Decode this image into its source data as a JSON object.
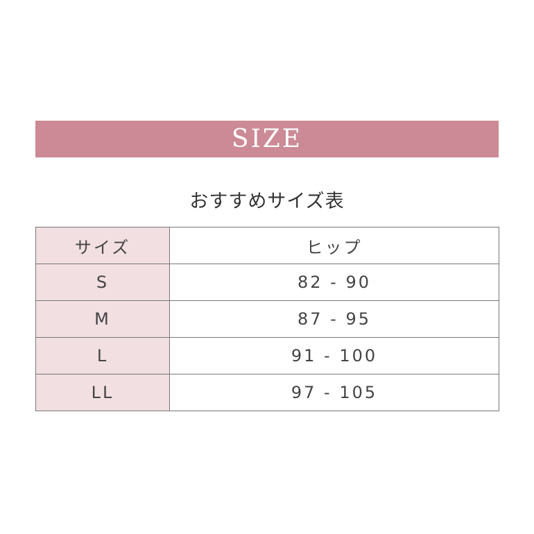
{
  "banner": {
    "title": "SIZE",
    "color": "#cc8a96"
  },
  "subtitle": "おすすめサイズ表",
  "table": {
    "headers": [
      "サイズ",
      "ヒップ"
    ],
    "rows": [
      [
        "S",
        "82 - 90"
      ],
      [
        "M",
        "87 - 95"
      ],
      [
        "L",
        "91 - 100"
      ],
      [
        "LL",
        "97 - 105"
      ]
    ]
  }
}
